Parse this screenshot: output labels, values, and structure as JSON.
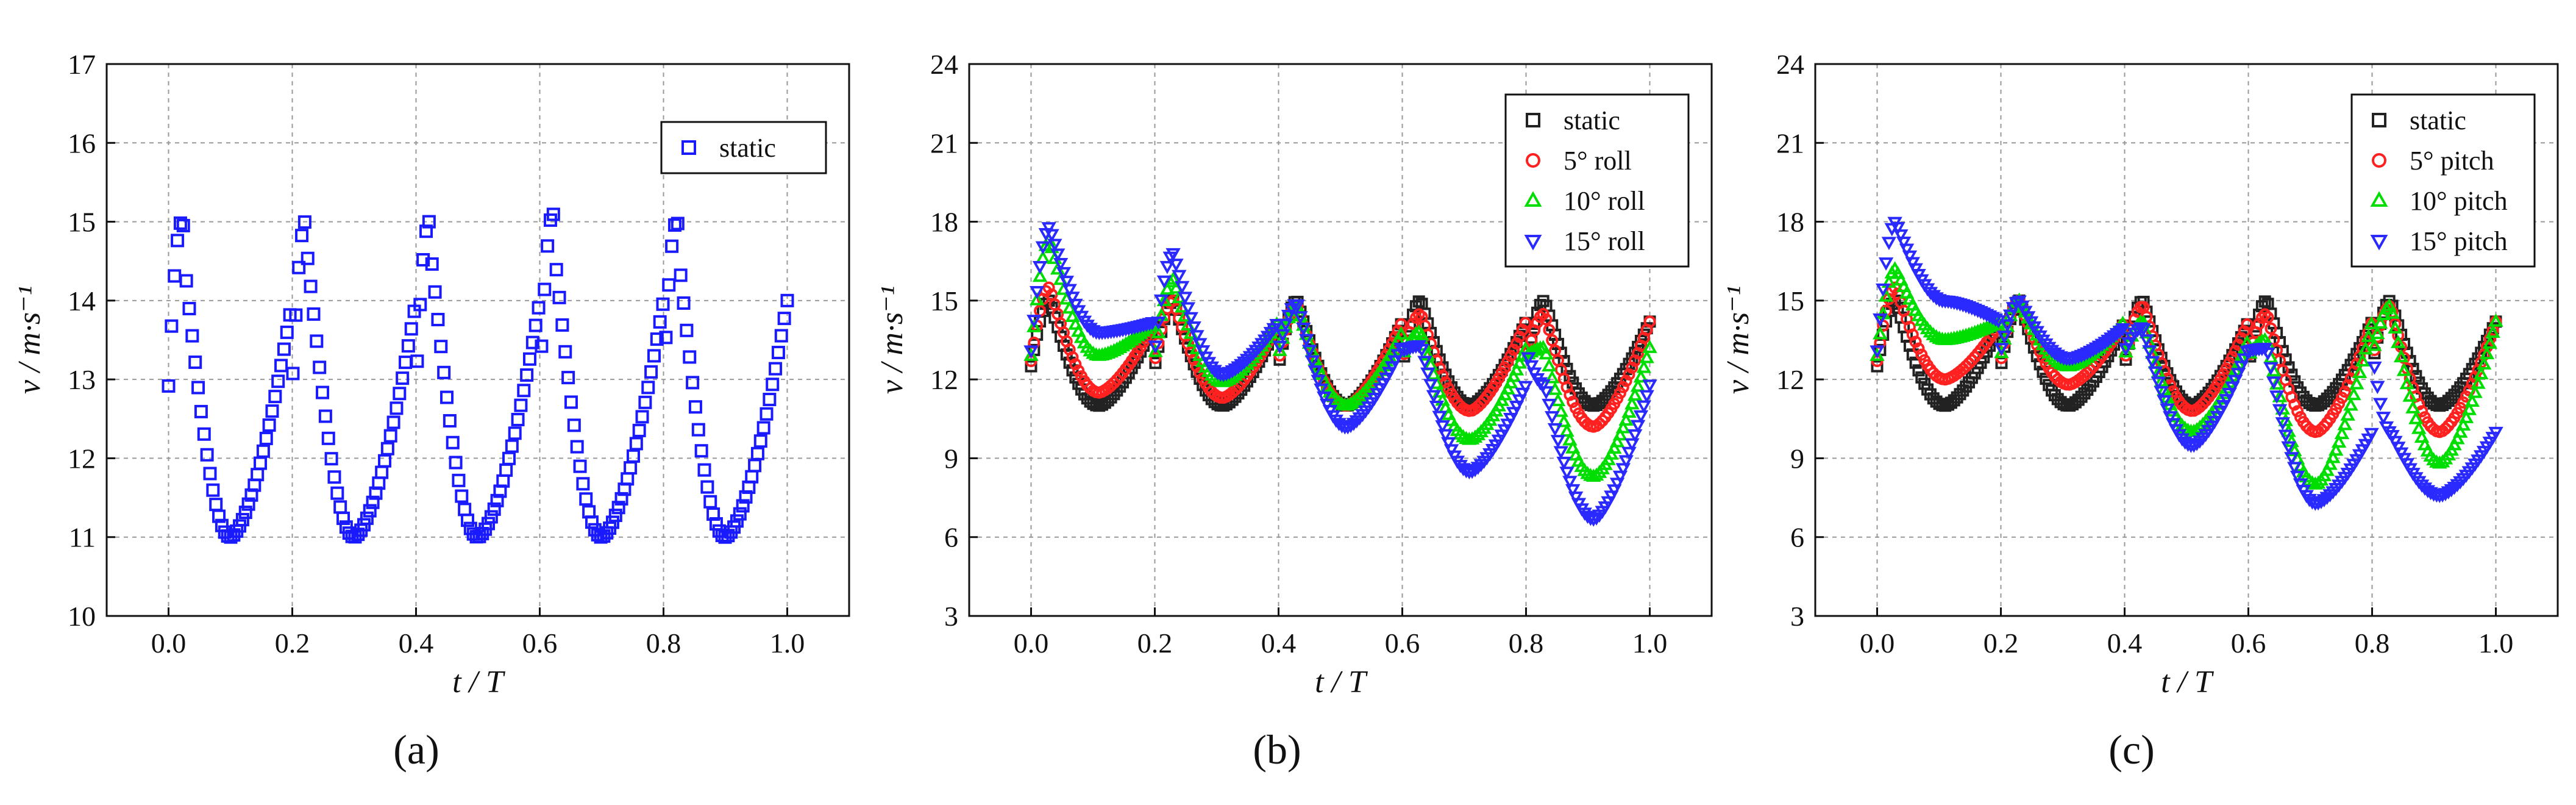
{
  "chart_data": [
    {
      "type": "scatter",
      "panel_label": "a",
      "xlabel": "t / T",
      "ylabel": "v / m·s⁻¹",
      "xlim": [
        -0.1,
        1.1
      ],
      "ylim": [
        10,
        17
      ],
      "xticks": [
        "0.0",
        "0.2",
        "0.4",
        "0.6",
        "0.8",
        "1.0"
      ],
      "yticks": [
        "10",
        "11",
        "12",
        "13",
        "14",
        "15",
        "16",
        "17"
      ],
      "grid": true,
      "legend_position": "top-right",
      "series": [
        {
          "name": "static",
          "marker": "square",
          "color": "#1a1aff",
          "base": 11.0,
          "peaks": [
            {
              "center": 0.025,
              "height": 15.0
            },
            {
              "center": 0.225,
              "height": 15.0
            },
            {
              "center": 0.425,
              "height": 15.0
            },
            {
              "center": 0.625,
              "height": 15.1
            },
            {
              "center": 0.825,
              "height": 15.0
            }
          ],
          "pre_peak": 14.0,
          "min_at": [
            0.12,
            0.32,
            0.52,
            0.72,
            0.92
          ]
        }
      ]
    },
    {
      "type": "scatter",
      "panel_label": "b",
      "xlabel": "t / T",
      "ylabel": "v / m·s⁻¹",
      "xlim": [
        -0.1,
        1.1
      ],
      "ylim": [
        3,
        24
      ],
      "xticks": [
        "0.0",
        "0.2",
        "0.4",
        "0.6",
        "0.8",
        "1.0"
      ],
      "yticks": [
        "3",
        "6",
        "9",
        "12",
        "15",
        "18",
        "21",
        "24"
      ],
      "grid": true,
      "legend_position": "top-right",
      "series": [
        {
          "name": "static",
          "marker": "square",
          "color": "#222222",
          "minima": [
            11.0,
            11.0,
            11.0,
            11.0,
            11.0
          ],
          "peaks": [
            15.0,
            15.0,
            15.0,
            15.0,
            15.0
          ]
        },
        {
          "name": "5° roll",
          "marker": "circle",
          "color": "#ff2020",
          "minima": [
            11.5,
            11.3,
            11.0,
            10.8,
            10.2
          ],
          "peaks": [
            15.5,
            15.0,
            14.8,
            14.5,
            14.5
          ]
        },
        {
          "name": "10° roll",
          "marker": "triangle-up",
          "color": "#00dd00",
          "minima": [
            12.9,
            11.9,
            11.0,
            9.7,
            8.3
          ],
          "peaks": [
            17.3,
            15.8,
            14.8,
            13.8,
            13.2
          ]
        },
        {
          "name": "15° roll",
          "marker": "triangle-down",
          "color": "#2a2aff",
          "minima": [
            13.8,
            12.2,
            10.2,
            8.5,
            6.7
          ],
          "peaks": [
            17.8,
            16.8,
            14.9,
            13.3,
            11.8
          ]
        }
      ]
    },
    {
      "type": "scatter",
      "panel_label": "c",
      "xlabel": "t / T",
      "ylabel": "v / m·s⁻¹",
      "xlim": [
        -0.1,
        1.1
      ],
      "ylim": [
        3,
        24
      ],
      "xticks": [
        "0.0",
        "0.2",
        "0.4",
        "0.6",
        "0.8",
        "1.0"
      ],
      "yticks": [
        "3",
        "6",
        "9",
        "12",
        "15",
        "18",
        "21",
        "24"
      ],
      "grid": true,
      "legend_position": "top-right",
      "series": [
        {
          "name": "static",
          "marker": "square",
          "color": "#222222",
          "minima": [
            11.0,
            11.0,
            11.0,
            11.0,
            11.0
          ],
          "peaks": [
            15.0,
            15.0,
            15.0,
            15.0,
            15.0
          ]
        },
        {
          "name": "5° pitch",
          "marker": "circle",
          "color": "#ff2020",
          "minima": [
            12.0,
            11.8,
            10.8,
            10.0,
            10.0
          ],
          "peaks": [
            15.5,
            15.0,
            14.8,
            14.5,
            14.8
          ]
        },
        {
          "name": "10° pitch",
          "marker": "triangle-up",
          "color": "#00dd00",
          "minima": [
            13.5,
            12.5,
            10.0,
            8.0,
            8.8
          ],
          "peaks": [
            16.2,
            15.0,
            14.2,
            13.5,
            14.8
          ]
        },
        {
          "name": "15° pitch",
          "marker": "triangle-down",
          "color": "#2a2aff",
          "minima": [
            15.0,
            12.8,
            9.5,
            7.3,
            7.6
          ],
          "peaks": [
            18.0,
            15.0,
            14.0,
            13.2,
            10.0
          ]
        }
      ]
    }
  ],
  "captions": [
    "(a)",
    "(b)",
    "(c)"
  ]
}
